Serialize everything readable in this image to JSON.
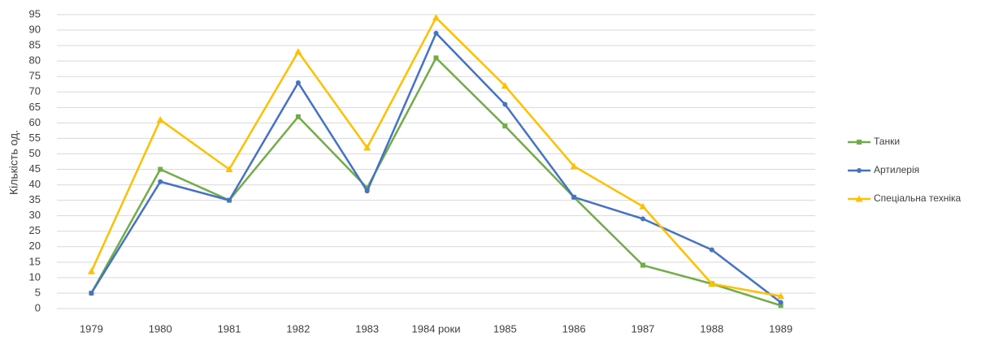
{
  "chart_data": {
    "type": "line",
    "y_label": "Кількість од.",
    "categories": [
      "1979",
      "1980",
      "1981",
      "1982",
      "1983",
      "1984 роки",
      "1985",
      "1986",
      "1987",
      "1988",
      "1989"
    ],
    "series": [
      {
        "name": "Танки",
        "color": "#70ad47",
        "marker": "square",
        "values": [
          5,
          45,
          35,
          62,
          39,
          81,
          59,
          36,
          14,
          8,
          1
        ]
      },
      {
        "name": "Артилерія",
        "color": "#4472c4",
        "marker": "circle",
        "values": [
          5,
          41,
          35,
          73,
          38,
          89,
          66,
          36,
          29,
          19,
          2
        ]
      },
      {
        "name": "Спеціальна техніка",
        "color": "#ffc000",
        "marker": "triangle",
        "values": [
          12,
          61,
          45,
          83,
          52,
          94,
          72,
          46,
          33,
          8,
          4
        ]
      }
    ],
    "ylim": [
      0,
      95
    ],
    "yticks": [
      0,
      5,
      10,
      15,
      20,
      25,
      30,
      35,
      40,
      45,
      50,
      55,
      60,
      65,
      70,
      75,
      80,
      85,
      90,
      95
    ],
    "grid": true,
    "legend": "right"
  }
}
